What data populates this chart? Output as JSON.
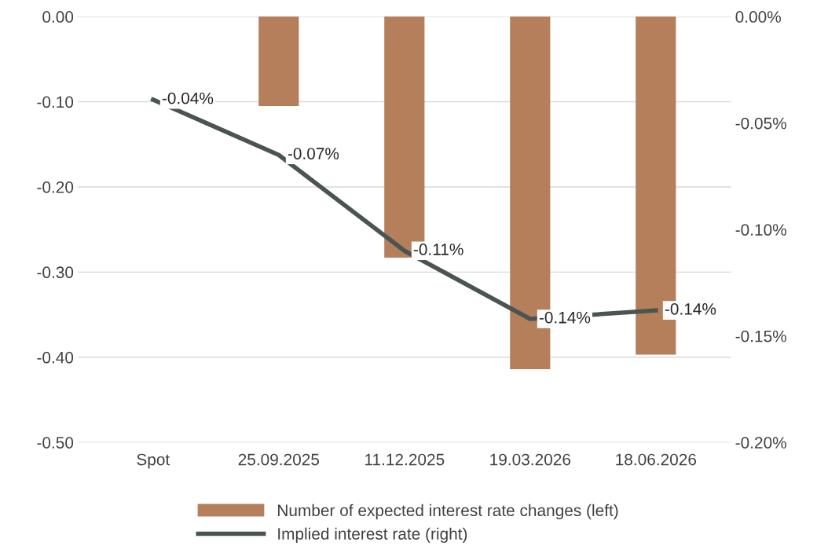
{
  "chart_data": {
    "type": "bar",
    "categories": [
      "Spot",
      "25.09.2025",
      "11.12.2025",
      "19.03.2026",
      "18.06.2026"
    ],
    "series": [
      {
        "name": "Number of expected interest rate changes (left)",
        "color": "#b57f5c",
        "values": [
          null,
          -0.105,
          -0.283,
          -0.414,
          -0.397
        ]
      },
      {
        "name": "Implied interest rate (right)",
        "type": "line",
        "axis": "y2",
        "color": "#4a5551",
        "values": [
          -0.039,
          -0.065,
          -0.11,
          -0.142,
          -0.138
        ],
        "value_labels": [
          "-0.04%",
          "-0.07%",
          "-0.11%",
          "-0.14%",
          "-0.14%"
        ]
      }
    ],
    "ylim": [
      -0.5,
      0
    ],
    "yticks": [
      {
        "value": -0.5,
        "label": "-0.50"
      },
      {
        "value": -0.4,
        "label": "-0.40"
      },
      {
        "value": -0.3,
        "label": "-0.30"
      },
      {
        "value": -0.2,
        "label": "-0.20"
      },
      {
        "value": -0.1,
        "label": "-0.10"
      },
      {
        "value": 0,
        "label": "0.00"
      }
    ],
    "y2lim": [
      -0.2,
      0
    ],
    "y2ticks": [
      {
        "value": -0.2,
        "label": "-0.20%"
      },
      {
        "value": -0.15,
        "label": "-0.15%"
      },
      {
        "value": -0.1,
        "label": "-0.10%"
      },
      {
        "value": -0.05,
        "label": "-0.05%"
      },
      {
        "value": 0,
        "label": "0.00%"
      }
    ],
    "grid": "y",
    "legend": "bottom",
    "marker": "none",
    "line_style": "solid"
  }
}
